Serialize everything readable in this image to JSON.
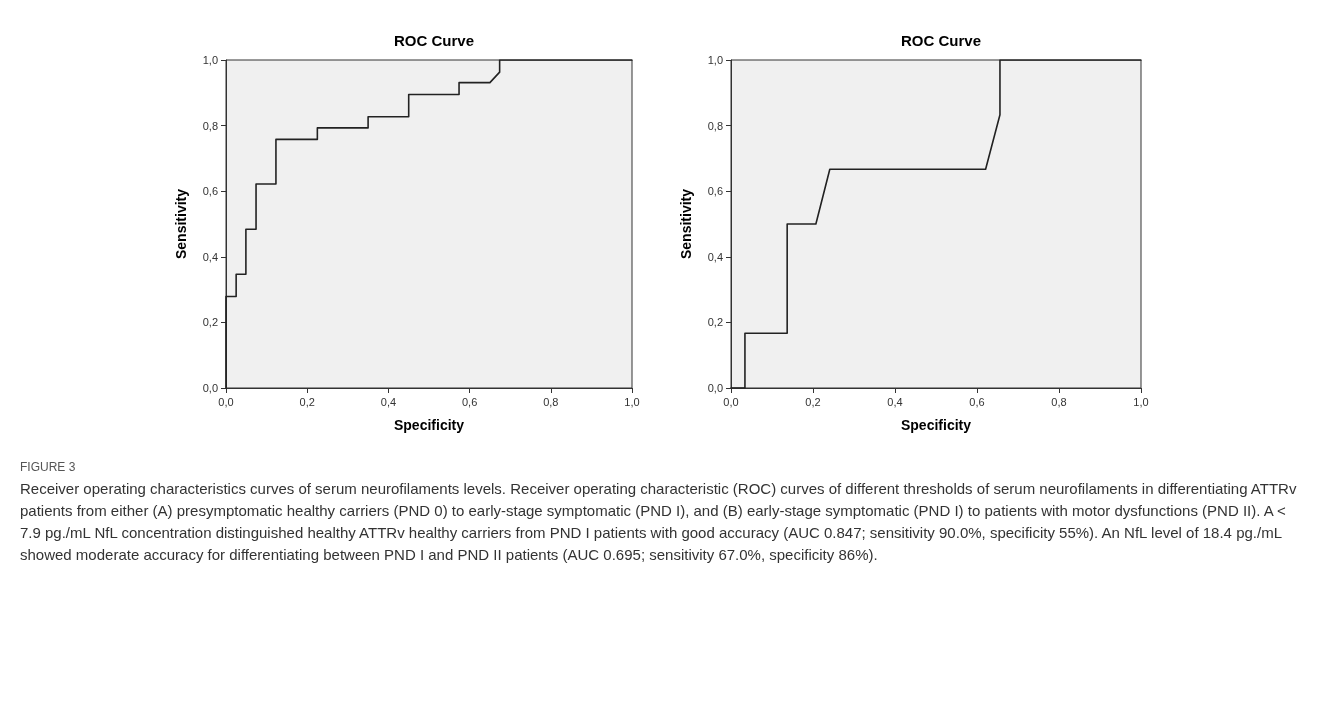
{
  "chart_data": [
    {
      "type": "line",
      "title": "ROC Curve",
      "xlabel": "Specificity",
      "ylabel": "Sensitivity",
      "x": [
        0,
        0,
        0.025,
        0.025,
        0.049,
        0.049,
        0.074,
        0.074,
        0.123,
        0.123,
        0.225,
        0.225,
        0.35,
        0.35,
        0.45,
        0.45,
        0.574,
        0.574,
        0.65,
        0.674,
        0.674,
        1
      ],
      "values": [
        0,
        0.279,
        0.279,
        0.347,
        0.347,
        0.484,
        0.484,
        0.622,
        0.622,
        0.758,
        0.758,
        0.793,
        0.793,
        0.827,
        0.827,
        0.895,
        0.895,
        0.931,
        0.931,
        0.963,
        1,
        1
      ],
      "color": "#222222",
      "xlim": [
        0,
        1
      ],
      "ylim": [
        0,
        1
      ],
      "xticks": [
        {
          "value": 0,
          "label": "0,0"
        },
        {
          "value": 0.2,
          "label": "0,2"
        },
        {
          "value": 0.4,
          "label": "0,4"
        },
        {
          "value": 0.6,
          "label": "0,6"
        },
        {
          "value": 0.8,
          "label": "0,8"
        },
        {
          "value": 1,
          "label": "1,0"
        }
      ],
      "yticks": [
        {
          "value": 0,
          "label": "0,0"
        },
        {
          "value": 0.2,
          "label": "0,2"
        },
        {
          "value": 0.4,
          "label": "0,4"
        },
        {
          "value": 0.6,
          "label": "0,6"
        },
        {
          "value": 0.8,
          "label": "0,8"
        },
        {
          "value": 1,
          "label": "1,0"
        }
      ],
      "marker": "none",
      "line_style": "solid",
      "annotations": [
        "FIGURE 3",
        "Receiver operating characteristics curves of serum neurofilaments levels. Receiver operating characteristic (ROC) curves of different thresholds of serum neurofilaments in differentiating ATTRv patients from either (A) presymptomatic healthy carriers (PND 0) to early-stage symptomatic (PND I), and (B) early-stage symptomatic (PND I) to patients with motor dysfunctions (PND II). A < 7.9 pg./mL NfL concentration distinguished healthy ATTRv healthy carriers from PND I patients with good accuracy (AUC 0.847; sensitivity 90.0%, specificity 55%). An NfL level of 18.4 pg./mL showed moderate accuracy for differentiating between PND I and PND II patients (AUC 0.695; sensitivity 67.0%, specificity 86%)."
      ]
    },
    {
      "type": "line",
      "title": "ROC Curve",
      "xlabel": "Specificity",
      "ylabel": "Sensitivity",
      "x": [
        0,
        0.034,
        0.034,
        0.137,
        0.137,
        0.207,
        0.241,
        0.621,
        0.656,
        0.656,
        1
      ],
      "values": [
        0,
        0,
        0.167,
        0.167,
        0.5,
        0.5,
        0.667,
        0.667,
        0.833,
        1,
        1
      ],
      "color": "#222222",
      "xlim": [
        0,
        1
      ],
      "ylim": [
        0,
        1
      ],
      "xticks": [
        {
          "value": 0,
          "label": "0,0"
        },
        {
          "value": 0.2,
          "label": "0,2"
        },
        {
          "value": 0.4,
          "label": "0,4"
        },
        {
          "value": 0.6,
          "label": "0,6"
        },
        {
          "value": 0.8,
          "label": "0,8"
        },
        {
          "value": 1,
          "label": "1,0"
        }
      ],
      "yticks": [
        {
          "value": 0,
          "label": "0,0"
        },
        {
          "value": 0.2,
          "label": "0,2"
        },
        {
          "value": 0.4,
          "label": "0,4"
        },
        {
          "value": 0.6,
          "label": "0,6"
        },
        {
          "value": 0.8,
          "label": "0,8"
        },
        {
          "value": 1,
          "label": "1,0"
        }
      ],
      "marker": "none",
      "line_style": "solid"
    }
  ]
}
